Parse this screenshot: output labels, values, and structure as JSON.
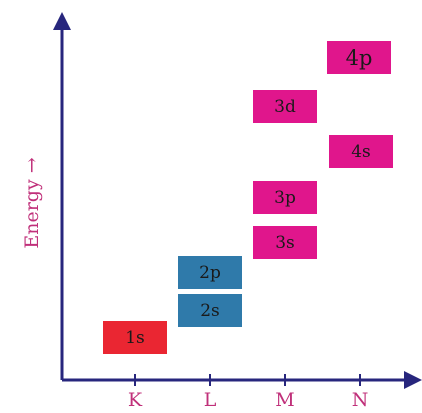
{
  "y_axis_label": "Energy →",
  "shells": [
    "K",
    "L",
    "M",
    "N"
  ],
  "colors": {
    "axis": "#27267d",
    "label": "#c0307a",
    "K": "#ea2632",
    "L": "#2f7aaa",
    "M": "#e0168c",
    "N": "#e0168c"
  },
  "orbitals": [
    {
      "label": "1s",
      "shell": "K"
    },
    {
      "label": "2s",
      "shell": "L"
    },
    {
      "label": "2p",
      "shell": "L"
    },
    {
      "label": "3s",
      "shell": "M"
    },
    {
      "label": "3p",
      "shell": "M"
    },
    {
      "label": "3d",
      "shell": "M"
    },
    {
      "label": "4s",
      "shell": "N"
    },
    {
      "label": "4p",
      "shell": "N"
    }
  ]
}
